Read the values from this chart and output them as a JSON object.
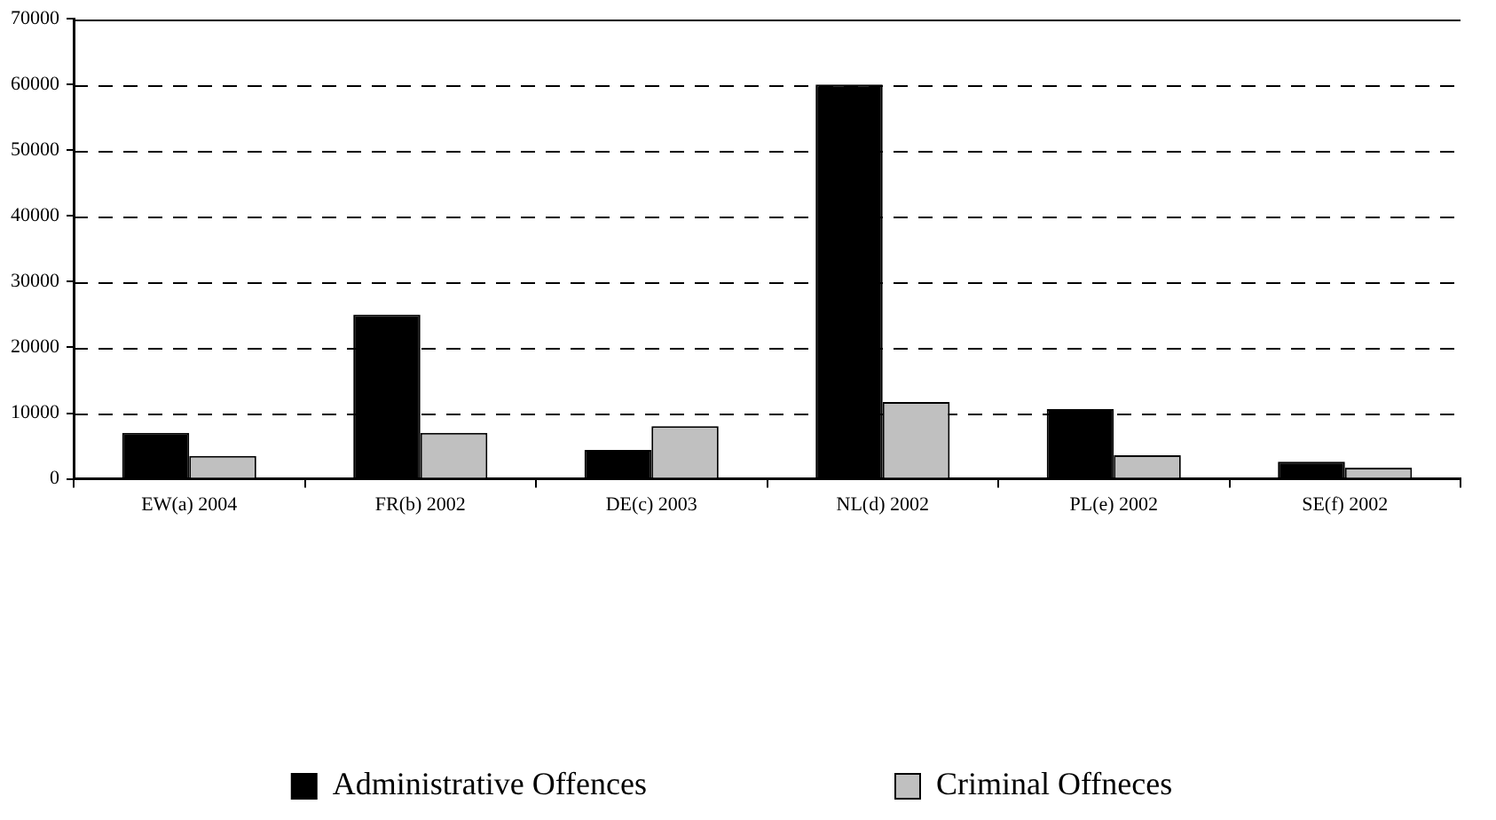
{
  "chart_data": {
    "type": "bar",
    "categories": [
      "EW(a) 2004",
      "FR(b) 2002",
      "DE(c) 2003",
      "NL(d) 2002",
      "PL(e) 2002",
      "SE(f) 2002"
    ],
    "series": [
      {
        "name": "Administrative Offences",
        "color": "#000000",
        "values": [
          7000,
          25000,
          4400,
          60000,
          10600,
          2600
        ]
      },
      {
        "name": "Criminal Offneces",
        "color": "#c0c0c0",
        "values": [
          3500,
          7000,
          8000,
          11700,
          3600,
          1700
        ]
      }
    ],
    "ylim": [
      0,
      70000
    ],
    "yticks": [
      0,
      10000,
      20000,
      30000,
      40000,
      50000,
      60000,
      70000
    ],
    "grid": "y",
    "line_style": "dashed",
    "legend": "bottom"
  }
}
